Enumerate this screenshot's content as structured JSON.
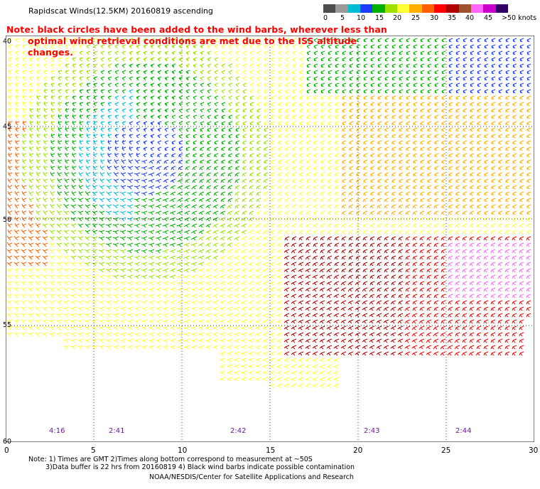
{
  "title": "Rapidscat Winds(12.5KM) 20160819 ascending",
  "note_line1": "Note: black circles have been added to the wind barbs, wherever less than",
  "note_line2": "optimal wind retrieval conditions are met due to the ISS altitude changes.",
  "color_scale": {
    "colors": [
      "#4d4d4d",
      "#9a9a9a",
      "#00bcd4",
      "#1e3cff",
      "#00b000",
      "#9ee000",
      "#ffff33",
      "#ffb000",
      "#ff6000",
      "#ff0000",
      "#b00000",
      "#a0522d",
      "#ff66ff",
      "#cc00cc",
      "#330066"
    ],
    "labels": [
      "0",
      "5",
      "10",
      "15",
      "20",
      "25",
      "30",
      "35",
      "40",
      "45",
      ">50 knots"
    ]
  },
  "axes": {
    "lat_labels": [
      "40",
      "45",
      "50",
      "55",
      "60"
    ],
    "lon_labels": [
      "0",
      "5",
      "10",
      "15",
      "20",
      "25",
      "30"
    ]
  },
  "time_labels": [
    "4:16",
    "2:41",
    "2:42",
    "2:43",
    "2:44"
  ],
  "footer": {
    "line1": "Note: 1) Times are GMT 2)Times along bottom correspond to measurement at ~50S",
    "line2": "3)Data buffer is 22 hrs from 20160819 4) Black wind barbs indicate possible contamination",
    "line3": "NOAA/NESDIS/Center for Satellite Applications and Research"
  }
}
